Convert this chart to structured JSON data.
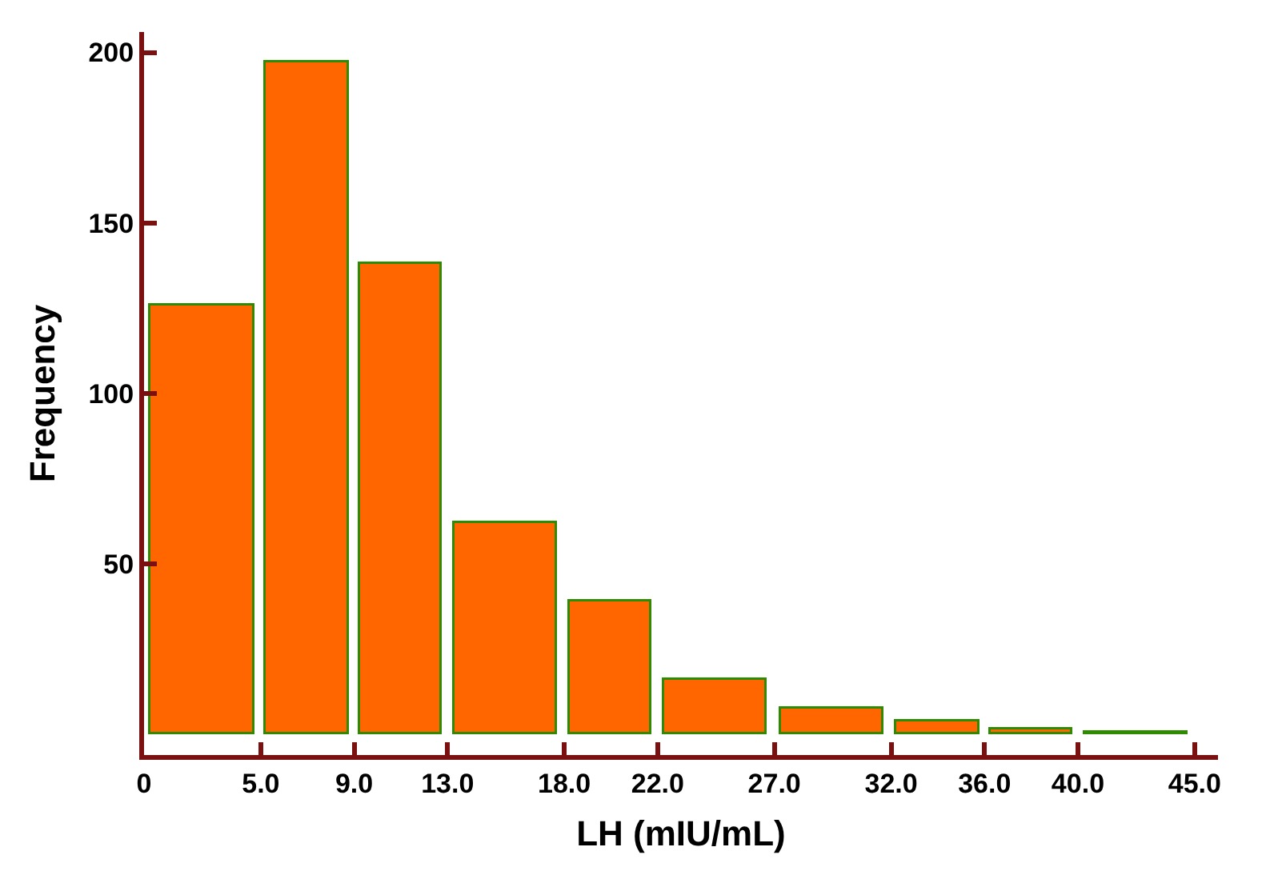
{
  "chart_data": {
    "type": "histogram",
    "xlabel": "LH (mIU/mL)",
    "ylabel": "Frequency",
    "bins": [
      0,
      5,
      9,
      13,
      18,
      22,
      27,
      32,
      36,
      40,
      45
    ],
    "values": [
      126,
      197,
      138,
      62,
      39,
      16,
      7.5,
      4,
      1.5,
      0.5
    ],
    "color": "#ff6600",
    "xlim": [
      0,
      46
    ],
    "xticks": [
      0,
      {
        "value": 5,
        "label": "5.0"
      },
      {
        "value": 9,
        "label": "9.0"
      },
      {
        "value": 13,
        "label": "13.0"
      },
      {
        "value": 18,
        "label": "18.0"
      },
      {
        "value": 22,
        "label": "22.0"
      },
      {
        "value": 27,
        "label": "27.0"
      },
      {
        "value": 32,
        "label": "32.0"
      },
      {
        "value": 36,
        "label": "36.0"
      },
      {
        "value": 40,
        "label": "40.0"
      },
      {
        "value": 45,
        "label": "45.0"
      }
    ],
    "ylim": [
      -6,
      206
    ],
    "yticks": [
      50,
      100,
      150,
      200
    ]
  }
}
